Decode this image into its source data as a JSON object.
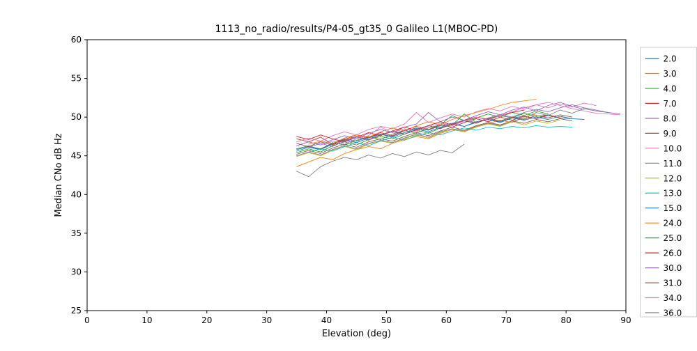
{
  "figure": {
    "title": "1113_no_radio/results/P4-05_gt35_0 Galileo L1(MBOC-PD)",
    "xlabel": "Elevation (deg)",
    "ylabel": "Median CNo dB Hz"
  },
  "chart_data": {
    "type": "line",
    "title": "1113_no_radio/results/P4-05_gt35_0 Galileo L1(MBOC-PD)",
    "xlabel": "Elevation (deg)",
    "ylabel": "Median CNo dB Hz",
    "xlim": [
      0,
      90
    ],
    "ylim": [
      25,
      60
    ],
    "xticks": [
      0,
      10,
      20,
      30,
      40,
      50,
      60,
      70,
      80,
      90
    ],
    "yticks": [
      25,
      30,
      35,
      40,
      45,
      50,
      55,
      60
    ],
    "grid": false,
    "legend_position": "right-outside",
    "series": [
      {
        "name": "2.0",
        "color": "#1f77b4",
        "x": [
          35,
          37,
          39,
          41,
          43,
          45,
          47,
          49,
          51,
          53,
          55,
          57,
          59,
          61,
          63,
          65,
          67,
          69,
          71,
          73,
          75,
          77,
          79,
          81
        ],
        "y": [
          45.6,
          46.1,
          45.8,
          46.5,
          47.2,
          46.9,
          47.4,
          47.8,
          47.5,
          48.2,
          48.6,
          48.3,
          48.9,
          49.2,
          48.8,
          49.4,
          49.7,
          49.3,
          49.9,
          50.1,
          49.8,
          50.2,
          49.9,
          49.8
        ]
      },
      {
        "name": "3.0",
        "color": "#ff7f0e",
        "x": [
          35,
          37,
          39,
          41,
          43,
          45,
          47,
          49,
          51,
          53,
          55,
          57,
          59,
          61,
          63,
          65,
          67,
          69,
          71,
          73,
          75
        ],
        "y": [
          43.6,
          44.2,
          44.8,
          44.5,
          45.3,
          45.8,
          46.2,
          45.9,
          46.6,
          47.1,
          47.5,
          47.2,
          47.9,
          48.4,
          48.1,
          48.8,
          49.2,
          49.6,
          49.3,
          50.0,
          50.4
        ]
      },
      {
        "name": "4.0",
        "color": "#2ca02c",
        "x": [
          35,
          37,
          39,
          41,
          43,
          45,
          47,
          49,
          51,
          53,
          55,
          57,
          59,
          61,
          63,
          65,
          67,
          69,
          71,
          73,
          75,
          77
        ],
        "y": [
          45.9,
          46.3,
          45.8,
          46.7,
          46.4,
          47.0,
          47.5,
          47.1,
          47.8,
          48.3,
          47.9,
          48.6,
          49.0,
          50.2,
          49.5,
          49.9,
          50.4,
          50.0,
          50.6,
          50.2,
          50.8,
          50.4
        ]
      },
      {
        "name": "7.0",
        "color": "#d62728",
        "x": [
          35,
          37,
          39,
          41,
          43,
          45,
          47,
          49,
          51,
          53,
          55,
          57,
          59,
          61,
          63,
          65,
          67,
          69,
          71,
          73,
          75,
          77,
          79
        ],
        "y": [
          47.2,
          46.8,
          47.4,
          46.5,
          47.1,
          47.7,
          47.3,
          48.0,
          47.6,
          48.3,
          48.8,
          48.4,
          49.0,
          48.7,
          49.3,
          49.8,
          49.4,
          50.0,
          49.6,
          50.1,
          49.8,
          50.3,
          49.9
        ]
      },
      {
        "name": "8.0",
        "color": "#9467bd",
        "x": [
          35,
          37,
          39,
          41,
          43,
          45,
          47,
          49,
          51,
          53,
          55,
          57,
          59,
          61,
          63,
          65,
          67,
          69,
          71,
          73,
          75,
          77,
          79,
          81,
          83
        ],
        "y": [
          46.3,
          46.8,
          46.4,
          47.1,
          47.6,
          47.2,
          47.9,
          48.4,
          48.0,
          48.7,
          49.1,
          50.6,
          49.4,
          50.0,
          49.6,
          50.2,
          50.7,
          50.3,
          50.9,
          51.3,
          50.8,
          51.5,
          51.9,
          51.4,
          51.0
        ]
      },
      {
        "name": "9.0",
        "color": "#8c564b",
        "x": [
          35,
          37,
          39,
          41,
          43,
          45,
          47,
          49,
          51,
          53,
          55,
          57,
          59,
          61,
          63,
          65,
          67,
          69,
          71,
          73,
          75,
          77,
          79,
          81
        ],
        "y": [
          45.2,
          45.7,
          45.3,
          46.0,
          46.5,
          46.1,
          46.8,
          47.2,
          46.9,
          47.5,
          48.0,
          47.6,
          48.2,
          48.7,
          48.3,
          48.9,
          49.3,
          49.0,
          49.5,
          49.2,
          49.7,
          49.4,
          49.8,
          49.5
        ]
      },
      {
        "name": "10.0",
        "color": "#e377c2",
        "x": [
          35,
          37,
          39,
          41,
          43,
          45,
          47,
          49,
          51,
          53,
          55,
          57,
          59,
          61,
          63,
          65,
          67,
          69,
          71,
          73,
          75,
          77,
          79,
          81,
          83,
          85
        ],
        "y": [
          46.8,
          47.3,
          46.9,
          47.6,
          48.1,
          47.7,
          48.4,
          48.8,
          48.5,
          49.1,
          50.6,
          49.3,
          49.9,
          50.4,
          50.0,
          50.7,
          51.1,
          50.8,
          51.4,
          51.0,
          51.6,
          51.2,
          51.7,
          51.3,
          51.8,
          51.5
        ]
      },
      {
        "name": "11.0",
        "color": "#7f7f7f",
        "x": [
          35,
          37,
          39,
          41,
          43,
          45,
          47,
          49,
          51,
          53,
          55,
          57,
          59,
          61,
          63
        ],
        "y": [
          43.0,
          42.3,
          43.6,
          44.3,
          44.8,
          44.5,
          45.1,
          44.7,
          45.3,
          44.9,
          45.5,
          45.1,
          45.7,
          45.4,
          46.5
        ]
      },
      {
        "name": "12.0",
        "color": "#bcbd22",
        "x": [
          35,
          37,
          39,
          41,
          43,
          45,
          47,
          49,
          51,
          53,
          55,
          57,
          59,
          61,
          63,
          65,
          67,
          69,
          71,
          73,
          75,
          77,
          79
        ],
        "y": [
          44.9,
          45.4,
          45.0,
          45.7,
          46.2,
          45.8,
          46.5,
          46.9,
          46.6,
          47.2,
          47.7,
          47.3,
          48.0,
          48.5,
          48.1,
          48.7,
          49.1,
          48.8,
          49.4,
          49.0,
          49.5,
          49.2,
          49.6
        ]
      },
      {
        "name": "13.0",
        "color": "#17becf",
        "x": [
          37,
          39,
          41,
          43,
          45,
          47,
          49,
          51,
          53,
          55,
          57,
          59,
          61,
          63,
          65,
          67,
          69,
          71,
          73,
          75,
          77,
          79,
          81
        ],
        "y": [
          45.5,
          45.9,
          45.6,
          46.2,
          46.7,
          46.3,
          46.9,
          47.4,
          47.0,
          47.6,
          48.0,
          47.7,
          48.2,
          48.6,
          48.3,
          48.7,
          48.5,
          48.8,
          48.6,
          48.9,
          48.7,
          48.8,
          48.7
        ]
      },
      {
        "name": "15.0",
        "color": "#1f77b4",
        "x": [
          35,
          37,
          39,
          41,
          43,
          45,
          47,
          49,
          51,
          53,
          55,
          57,
          59,
          61,
          63,
          65,
          67,
          69,
          71,
          73,
          75,
          77,
          79,
          81,
          83
        ],
        "y": [
          45.8,
          46.2,
          45.9,
          46.6,
          47.0,
          46.7,
          47.3,
          47.8,
          47.4,
          48.0,
          48.5,
          48.1,
          48.7,
          49.1,
          48.8,
          49.3,
          49.7,
          49.4,
          49.9,
          49.6,
          50.0,
          49.7,
          50.1,
          49.8,
          49.7
        ]
      },
      {
        "name": "24.0",
        "color": "#ff7f0e",
        "x": [
          37,
          39,
          41,
          43,
          45,
          47,
          49,
          51,
          53,
          55,
          57,
          59,
          61,
          63,
          65,
          67,
          69,
          71,
          73,
          75
        ],
        "y": [
          46.5,
          46.9,
          46.6,
          47.3,
          47.7,
          47.4,
          48.1,
          48.6,
          48.2,
          48.9,
          49.4,
          49.0,
          49.7,
          50.2,
          50.6,
          51.0,
          51.5,
          51.9,
          52.1,
          52.3
        ]
      },
      {
        "name": "25.0",
        "color": "#2ca02c",
        "x": [
          35,
          37,
          39,
          41,
          43,
          45,
          47,
          49,
          51,
          53,
          55,
          57,
          59,
          61,
          63,
          65,
          67,
          69,
          71,
          73,
          75,
          77
        ],
        "y": [
          45.4,
          45.9,
          45.5,
          46.3,
          46.8,
          46.4,
          47.1,
          47.5,
          47.2,
          47.8,
          48.3,
          47.9,
          48.6,
          49.0,
          50.4,
          49.3,
          49.8,
          50.2,
          49.9,
          50.5,
          50.1,
          50.3
        ]
      },
      {
        "name": "26.0",
        "color": "#d62728",
        "x": [
          35,
          37,
          39,
          41,
          43,
          45,
          47,
          49,
          51,
          53,
          55,
          57,
          59,
          61,
          63,
          65,
          67,
          69,
          71,
          73
        ],
        "y": [
          47.5,
          47.1,
          47.7,
          47.2,
          46.8,
          47.4,
          48.0,
          47.6,
          48.2,
          48.7,
          48.3,
          48.9,
          49.4,
          49.0,
          49.6,
          50.0,
          49.7,
          50.2,
          50.6,
          50.9
        ]
      },
      {
        "name": "30.0",
        "color": "#9467bd",
        "x": [
          37,
          39,
          41,
          43,
          45,
          47,
          49,
          51,
          53,
          55,
          57,
          59,
          61,
          63,
          65,
          67,
          69,
          71,
          73,
          75,
          77,
          79,
          81,
          83,
          85,
          87,
          89
        ],
        "y": [
          46.1,
          46.6,
          46.2,
          46.9,
          47.4,
          47.0,
          47.7,
          48.1,
          47.8,
          48.4,
          48.9,
          48.5,
          49.2,
          49.6,
          49.3,
          49.9,
          50.3,
          50.0,
          50.6,
          51.0,
          50.7,
          51.2,
          51.6,
          51.2,
          50.9,
          50.6,
          50.4
        ]
      },
      {
        "name": "31.0",
        "color": "#8c564b",
        "x": [
          35,
          37,
          39,
          41,
          43,
          45,
          47,
          49,
          51,
          53,
          55,
          57,
          59,
          61,
          63,
          65,
          67,
          69,
          71,
          73,
          75,
          77,
          79,
          81
        ],
        "y": [
          46.6,
          46.2,
          46.8,
          46.4,
          47.0,
          47.5,
          47.1,
          47.7,
          48.2,
          47.8,
          48.4,
          48.9,
          48.5,
          49.1,
          49.5,
          49.2,
          49.8,
          49.5,
          50.0,
          49.7,
          50.2,
          49.9,
          50.3,
          50.0
        ]
      },
      {
        "name": "34.0",
        "color": "#e377c2",
        "x": [
          39,
          41,
          43,
          45,
          47,
          49,
          51,
          53,
          55,
          57,
          59,
          61,
          63,
          65,
          67,
          69,
          71,
          73,
          75,
          77,
          79,
          81,
          83,
          85,
          87,
          89
        ],
        "y": [
          46.4,
          46.9,
          46.5,
          47.2,
          47.6,
          48.7,
          48.0,
          48.5,
          48.1,
          48.8,
          49.2,
          48.9,
          49.5,
          50.0,
          49.6,
          50.2,
          50.7,
          51.2,
          51.6,
          51.9,
          51.5,
          51.1,
          50.8,
          50.5,
          50.4,
          50.3
        ]
      },
      {
        "name": "36.0",
        "color": "#7f7f7f",
        "x": [
          35,
          37,
          39,
          41,
          43,
          45,
          47,
          49,
          51,
          53,
          55,
          57,
          59,
          61,
          63,
          65,
          67,
          69,
          71,
          73,
          75,
          77,
          79,
          81,
          83,
          85,
          87
        ],
        "y": [
          45.0,
          45.5,
          45.1,
          45.8,
          46.3,
          45.9,
          46.6,
          47.0,
          46.7,
          47.3,
          47.8,
          47.4,
          48.1,
          48.5,
          48.2,
          48.8,
          49.2,
          48.9,
          49.5,
          49.8,
          50.6,
          50.2,
          50.9,
          50.5,
          51.1,
          50.8,
          50.6
        ]
      }
    ]
  }
}
